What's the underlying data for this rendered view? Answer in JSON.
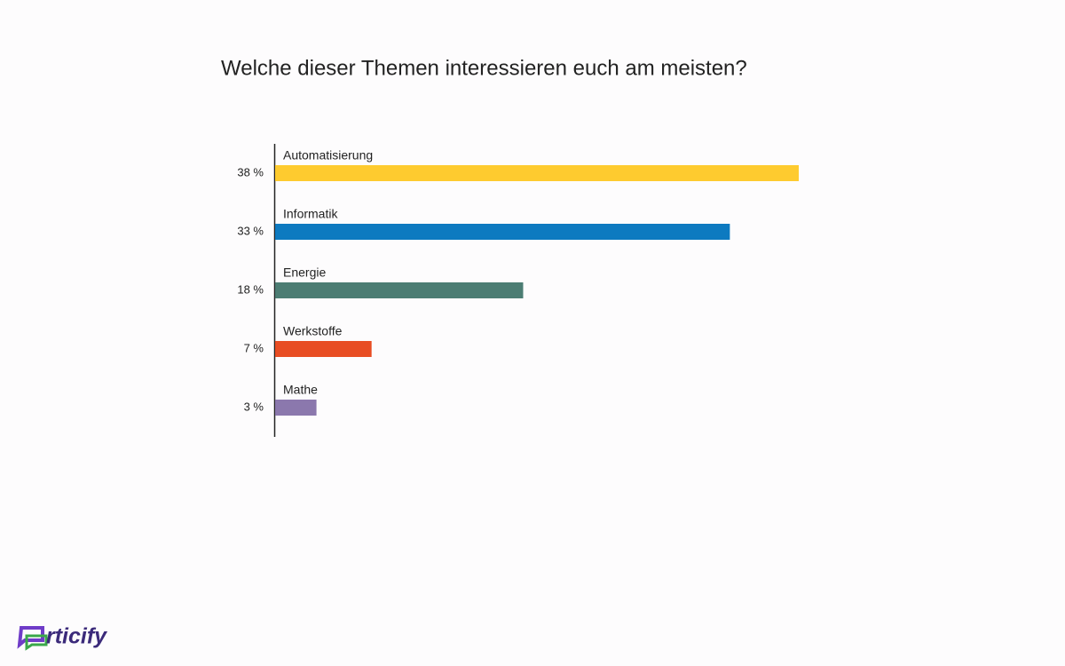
{
  "chart_data": {
    "type": "bar",
    "orientation": "horizontal",
    "title": "Welche dieser Themen interessieren euch am meisten?",
    "categories": [
      "Automatisierung",
      "Informatik",
      "Energie",
      "Werkstoffe",
      "Mathe"
    ],
    "values": [
      38,
      33,
      18,
      7,
      3
    ],
    "value_labels": [
      "38 %",
      "33 %",
      "18 %",
      "7 %",
      "3 %"
    ],
    "colors": [
      "#fecb2f",
      "#0d7ac0",
      "#4c7d73",
      "#e84d23",
      "#8b78ad"
    ]
  },
  "logo": "rticify"
}
